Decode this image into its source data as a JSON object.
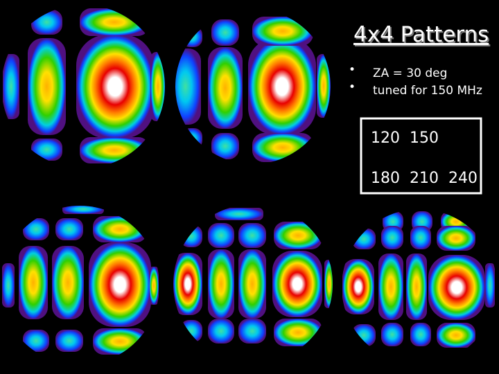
{
  "slide": {
    "title": "4x4 Patterns",
    "bullets": [
      "ZA = 30 deg",
      "tuned for 150 MHz"
    ],
    "box_lines": [
      "120  150",
      "180  210  240"
    ]
  }
}
